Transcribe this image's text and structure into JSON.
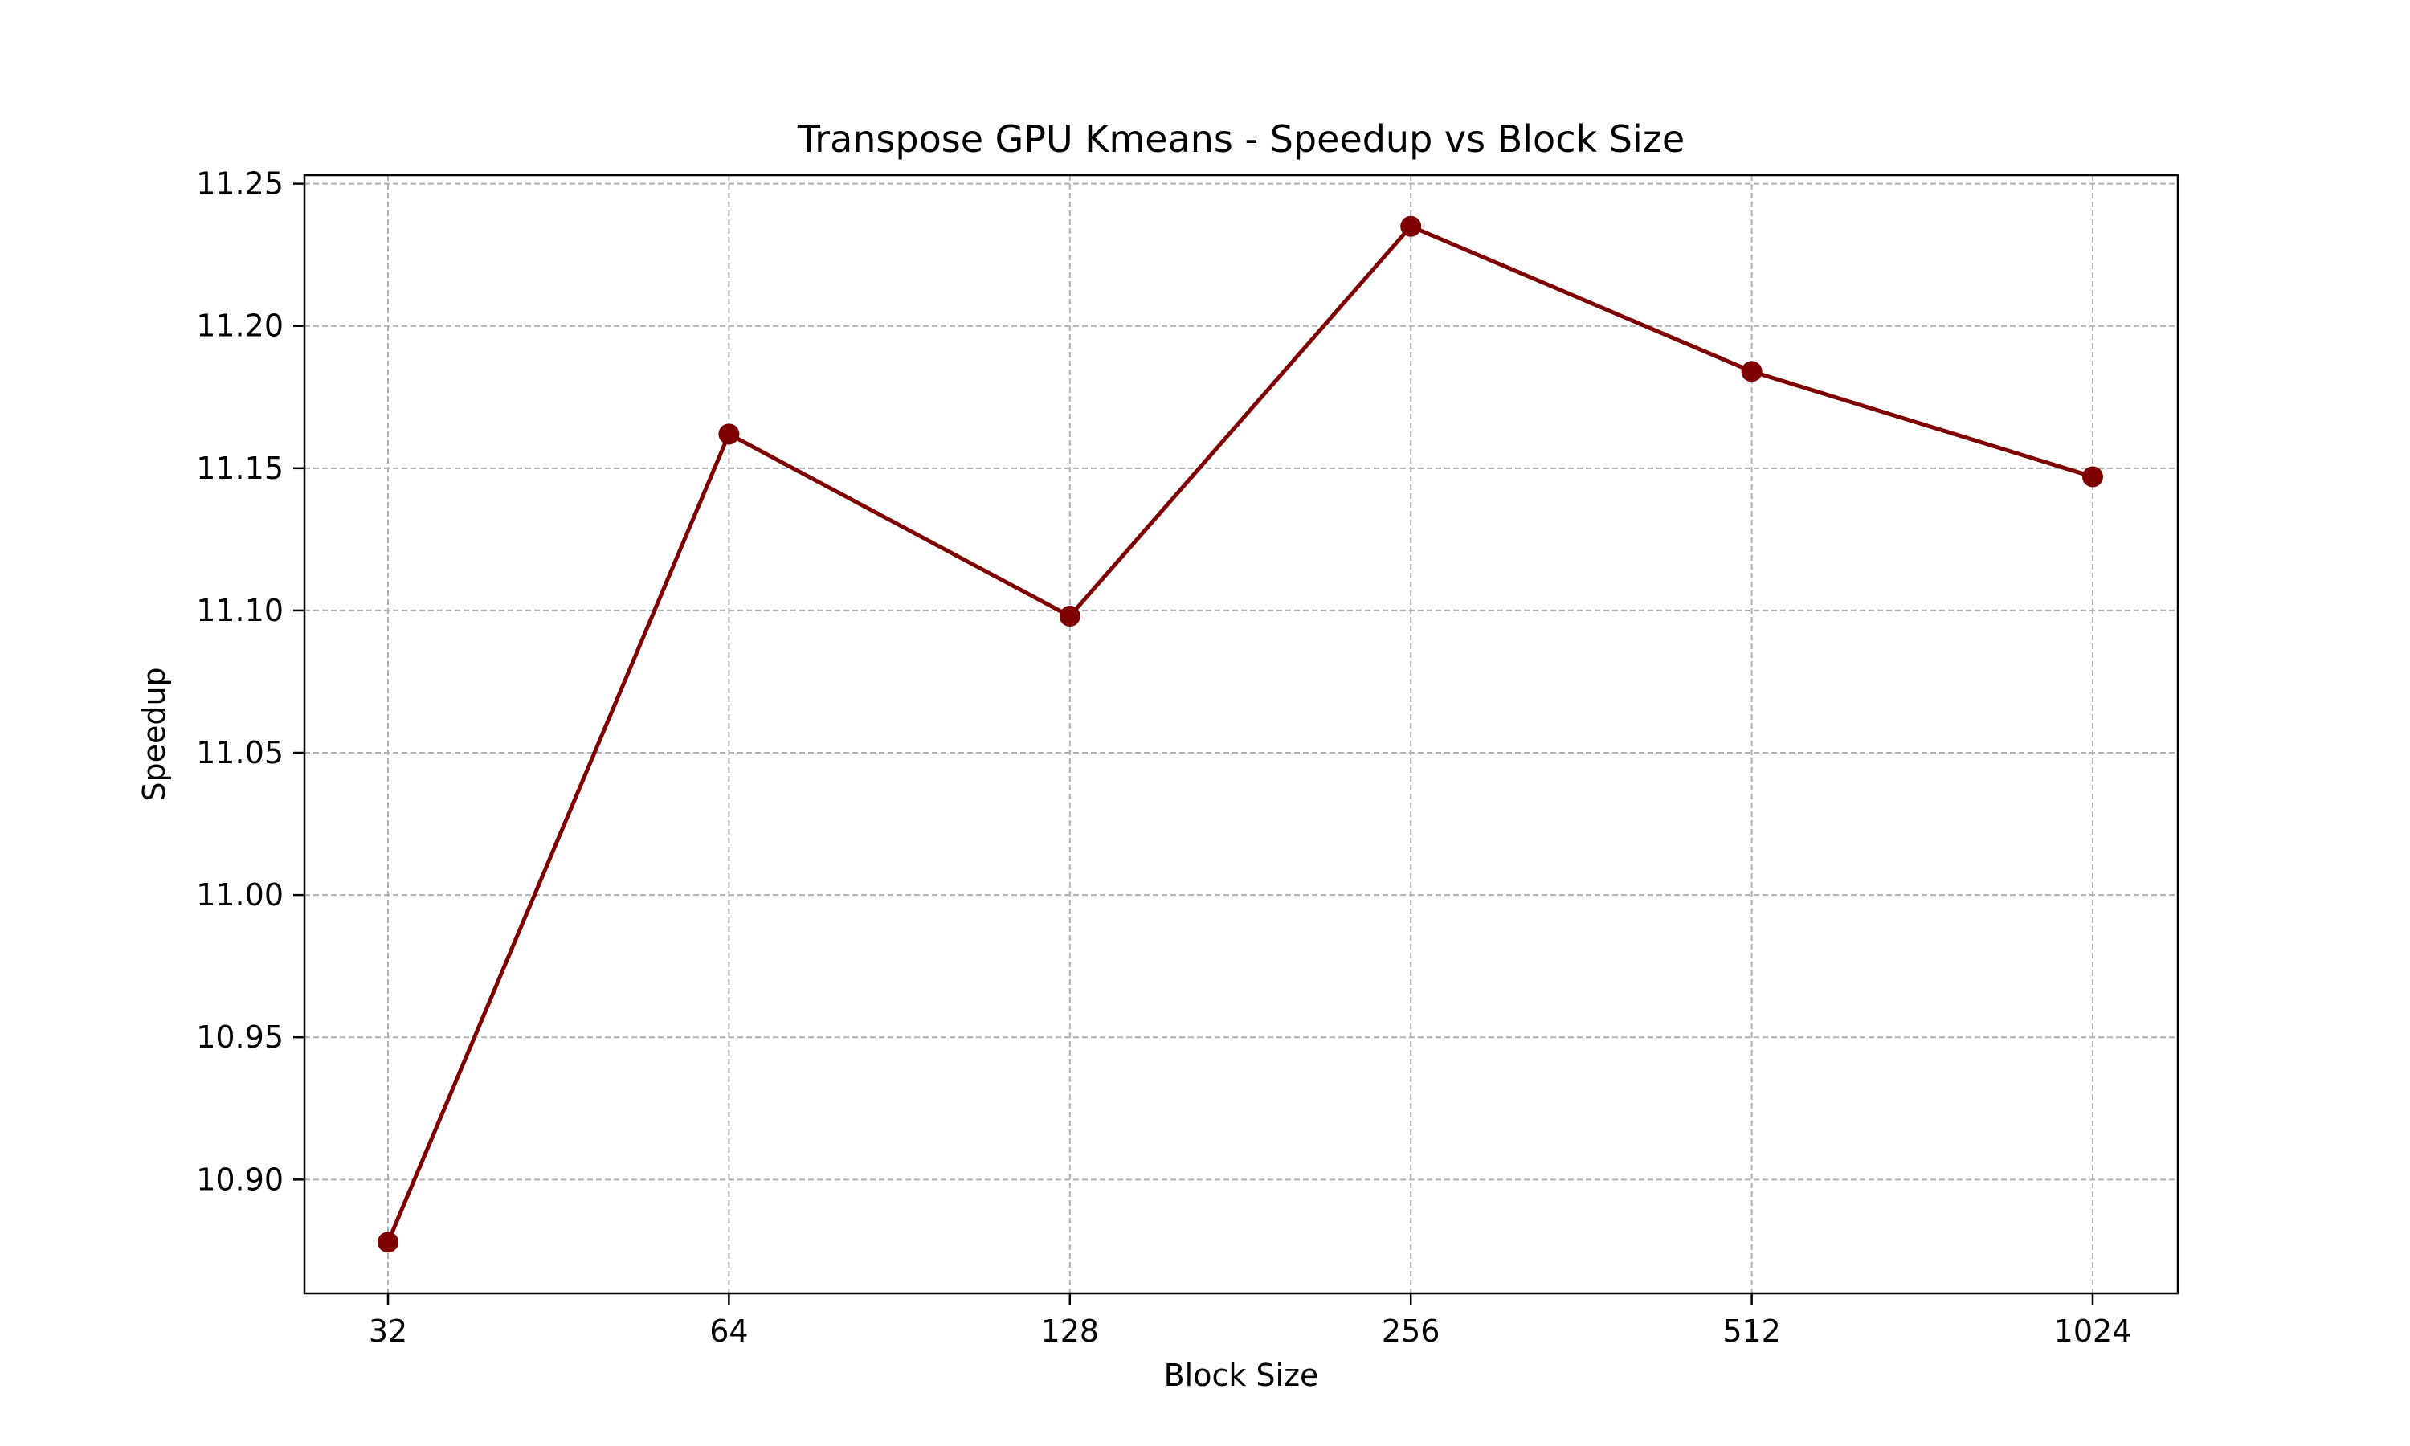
{
  "chart_data": {
    "type": "line",
    "title": "Transpose GPU Kmeans - Speedup vs Block Size",
    "xlabel": "Block Size",
    "ylabel": "Speedup",
    "categories": [
      "32",
      "64",
      "128",
      "256",
      "512",
      "1024"
    ],
    "series": [
      {
        "values": [
          10.878,
          11.162,
          11.098,
          11.235,
          11.184,
          11.147
        ],
        "color": "#7f0000",
        "marker": "circle"
      }
    ],
    "ylim": [
      10.86,
      11.253
    ],
    "yticks": [
      10.9,
      10.95,
      11.0,
      11.05,
      11.1,
      11.15,
      11.2,
      11.25
    ],
    "ytick_labels": [
      "10.90",
      "10.95",
      "11.00",
      "11.05",
      "11.10",
      "11.15",
      "11.20",
      "11.25"
    ],
    "grid": true,
    "legend": "none"
  }
}
